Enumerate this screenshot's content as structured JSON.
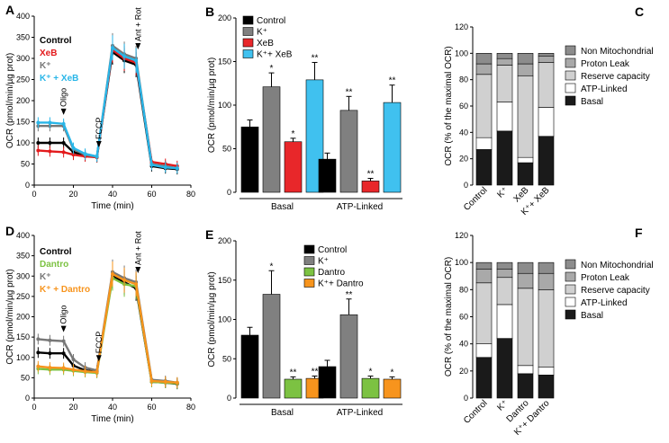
{
  "chart_data": [
    {
      "panel": "A",
      "type": "line",
      "xlabel": "Time  (min)",
      "ylabel": "OCR (pmol/min/µg prot)",
      "xlim": [
        0,
        80
      ],
      "ylim": [
        0,
        400
      ],
      "xticks": [
        0,
        20,
        40,
        60,
        80
      ],
      "yticks": [
        0,
        50,
        100,
        150,
        200,
        250,
        300,
        350,
        400
      ],
      "annotations": [
        {
          "label": "Oligo",
          "x": 15
        },
        {
          "label": "FCCP",
          "x": 33
        },
        {
          "label": "Ant + Rot",
          "x": 53
        }
      ],
      "x": [
        2,
        8,
        15,
        20,
        26,
        32,
        40,
        46,
        52,
        60,
        67,
        73
      ],
      "series": [
        {
          "name": "Control",
          "color": "#000000",
          "values": [
            100,
            100,
            100,
            78,
            70,
            66,
            315,
            295,
            285,
            45,
            40,
            38
          ]
        },
        {
          "name": "XeB",
          "color": "#e31a1c",
          "values": [
            82,
            80,
            78,
            72,
            68,
            66,
            320,
            300,
            290,
            55,
            50,
            45
          ]
        },
        {
          "name": "K⁺",
          "color": "#777777",
          "values": [
            140,
            140,
            140,
            85,
            72,
            67,
            330,
            310,
            300,
            50,
            45,
            40
          ]
        },
        {
          "name": "K⁺ + XeB",
          "color": "#29b6e8",
          "values": [
            148,
            148,
            145,
            88,
            74,
            68,
            325,
            305,
            295,
            48,
            42,
            40
          ]
        }
      ]
    },
    {
      "panel": "B",
      "type": "bar",
      "ylabel": "OCR (pmol/min/µg prot)",
      "ylim": [
        0,
        200
      ],
      "yticks": [
        0,
        50,
        100,
        150,
        200
      ],
      "groups": [
        "Basal",
        "ATP-Linked"
      ],
      "series": [
        {
          "name": "Control",
          "color": "#000000",
          "values": [
            75,
            38
          ],
          "errors": [
            8,
            7
          ],
          "stars": [
            "",
            ""
          ]
        },
        {
          "name": "K⁺",
          "color": "#808080",
          "values": [
            121,
            94
          ],
          "errors": [
            16,
            16
          ],
          "stars": [
            "*",
            "**"
          ]
        },
        {
          "name": "XeB",
          "color": "#e8272a",
          "values": [
            58,
            13
          ],
          "errors": [
            4,
            3
          ],
          "stars": [
            "*",
            "**"
          ]
        },
        {
          "name": "K⁺+ XeB",
          "color": "#40c1ef",
          "values": [
            129,
            103
          ],
          "errors": [
            20,
            20
          ],
          "stars": [
            "**",
            "**"
          ]
        }
      ]
    },
    {
      "panel": "C",
      "type": "bar",
      "stacked": true,
      "ylabel": "OCR (% of the maximal OCR)",
      "ylim": [
        0,
        120
      ],
      "yticks": [
        0,
        20,
        40,
        60,
        80,
        100,
        120
      ],
      "categories": [
        "Control",
        "K⁺",
        "XeB",
        "K⁺+ XeB"
      ],
      "legend": [
        {
          "name": "Non Mitochondrial",
          "color": "#8c8c8c"
        },
        {
          "name": "Proton Leak",
          "color": "#a9a9a9"
        },
        {
          "name": "Reserve capacity",
          "color": "#d0d0d0"
        },
        {
          "name": "ATP-Linked",
          "color": "#ffffff"
        },
        {
          "name": "Basal",
          "color": "#1a1a1a"
        }
      ],
      "stacks": [
        {
          "name": "Basal",
          "color": "#1a1a1a",
          "values": [
            27,
            41,
            17,
            37
          ]
        },
        {
          "name": "ATP-Linked",
          "color": "#ffffff",
          "values": [
            9,
            22,
            4,
            22
          ]
        },
        {
          "name": "Reserve capacity",
          "color": "#d0d0d0",
          "values": [
            48,
            28,
            62,
            34
          ]
        },
        {
          "name": "Proton Leak",
          "color": "#a9a9a9",
          "values": [
            8,
            5,
            9,
            5
          ]
        },
        {
          "name": "Non Mitochondrial",
          "color": "#8c8c8c",
          "values": [
            8,
            4,
            8,
            2
          ]
        }
      ]
    },
    {
      "panel": "D",
      "type": "line",
      "xlabel": "Time  (min)",
      "ylabel": "OCR (pmol/min/µg prot)",
      "xlim": [
        0,
        80
      ],
      "ylim": [
        0,
        400
      ],
      "xticks": [
        0,
        20,
        40,
        60,
        80
      ],
      "yticks": [
        0,
        50,
        100,
        150,
        200,
        250,
        300,
        350,
        400
      ],
      "annotations": [
        {
          "label": "Oligo",
          "x": 15
        },
        {
          "label": "FCCP",
          "x": 33
        },
        {
          "label": "Ant + Rot",
          "x": 53
        }
      ],
      "x": [
        2,
        8,
        15,
        20,
        26,
        32,
        40,
        46,
        52,
        60,
        67,
        73
      ],
      "series": [
        {
          "name": "Control",
          "color": "#000000",
          "values": [
            112,
            110,
            110,
            80,
            68,
            65,
            300,
            285,
            270,
            40,
            38,
            35
          ]
        },
        {
          "name": "Dantro",
          "color": "#7cc242",
          "values": [
            72,
            70,
            70,
            67,
            64,
            62,
            295,
            280,
            275,
            40,
            38,
            36
          ]
        },
        {
          "name": "K⁺",
          "color": "#777777",
          "values": [
            145,
            142,
            140,
            95,
            75,
            68,
            310,
            295,
            285,
            45,
            42,
            38
          ]
        },
        {
          "name": "K⁺ + Dantro",
          "color": "#f7941d",
          "values": [
            78,
            75,
            74,
            70,
            66,
            64,
            305,
            290,
            280,
            42,
            40,
            38
          ]
        }
      ]
    },
    {
      "panel": "E",
      "type": "bar",
      "ylabel": "OCR (pmol/min/µg prot)",
      "ylim": [
        0,
        200
      ],
      "yticks": [
        0,
        50,
        100,
        150,
        200
      ],
      "groups": [
        "Basal",
        "ATP-Linked"
      ],
      "series": [
        {
          "name": "Control",
          "color": "#000000",
          "values": [
            80,
            40
          ],
          "errors": [
            10,
            8
          ],
          "stars": [
            "",
            ""
          ]
        },
        {
          "name": "K⁺",
          "color": "#808080",
          "values": [
            132,
            106
          ],
          "errors": [
            30,
            20
          ],
          "stars": [
            "*",
            "**"
          ]
        },
        {
          "name": "Dantro",
          "color": "#7cc242",
          "values": [
            24,
            25
          ],
          "errors": [
            3,
            3
          ],
          "stars": [
            "**",
            "*"
          ]
        },
        {
          "name": "K⁺+ Dantro",
          "color": "#f7941d",
          "values": [
            25,
            24
          ],
          "errors": [
            3,
            3
          ],
          "stars": [
            "**",
            "*"
          ]
        }
      ]
    },
    {
      "panel": "F",
      "type": "bar",
      "stacked": true,
      "ylabel": "OCR (% of the maximal OCR)",
      "ylim": [
        0,
        120
      ],
      "yticks": [
        0,
        20,
        40,
        60,
        80,
        100,
        120
      ],
      "categories": [
        "Control",
        "K⁺",
        "Dantro",
        "K⁺+ Dantro"
      ],
      "legend": [
        {
          "name": "Non Mitochondrial",
          "color": "#8c8c8c"
        },
        {
          "name": "Proton Leak",
          "color": "#a9a9a9"
        },
        {
          "name": "Reserve capacity",
          "color": "#d0d0d0"
        },
        {
          "name": "ATP-Linked",
          "color": "#ffffff"
        },
        {
          "name": "Basal",
          "color": "#1a1a1a"
        }
      ],
      "stacks": [
        {
          "name": "Basal",
          "color": "#1a1a1a",
          "values": [
            30,
            44,
            18,
            17
          ]
        },
        {
          "name": "ATP-Linked",
          "color": "#ffffff",
          "values": [
            10,
            25,
            6,
            6
          ]
        },
        {
          "name": "Reserve capacity",
          "color": "#d0d0d0",
          "values": [
            45,
            20,
            57,
            57
          ]
        },
        {
          "name": "Proton Leak",
          "color": "#a9a9a9",
          "values": [
            10,
            6,
            11,
            12
          ]
        },
        {
          "name": "Non Mitochondrial",
          "color": "#8c8c8c",
          "values": [
            5,
            5,
            8,
            8
          ]
        }
      ]
    }
  ]
}
